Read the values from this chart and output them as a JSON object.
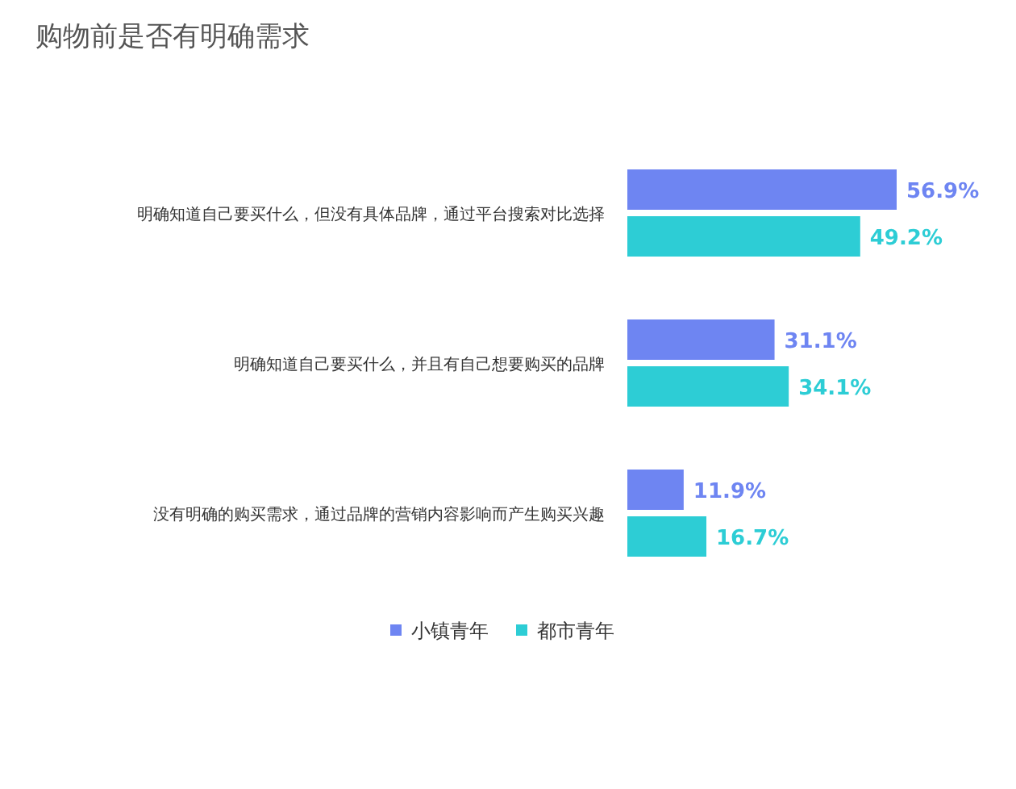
{
  "chart_data": {
    "type": "bar",
    "orientation": "horizontal",
    "title": "购物前是否有明确需求",
    "categories": [
      "明确知道自己要买什么，但没有具体品牌，通过平台搜索对比选择",
      "明确知道自己要买什么，并且有自己想要购买的品牌",
      "没有明确的购买需求，通过品牌的营销内容影响而产生购买兴趣"
    ],
    "series": [
      {
        "name": "小镇青年",
        "color": "#6e85f2",
        "values": [
          56.9,
          31.1,
          11.9
        ],
        "value_labels": [
          "56.9%",
          "31.1%",
          "11.9%"
        ]
      },
      {
        "name": "都市青年",
        "color": "#2dcdd5",
        "values": [
          49.2,
          34.1,
          16.7
        ],
        "value_labels": [
          "49.2%",
          "34.1%",
          "16.7%"
        ]
      }
    ],
    "legend": "bottom"
  }
}
